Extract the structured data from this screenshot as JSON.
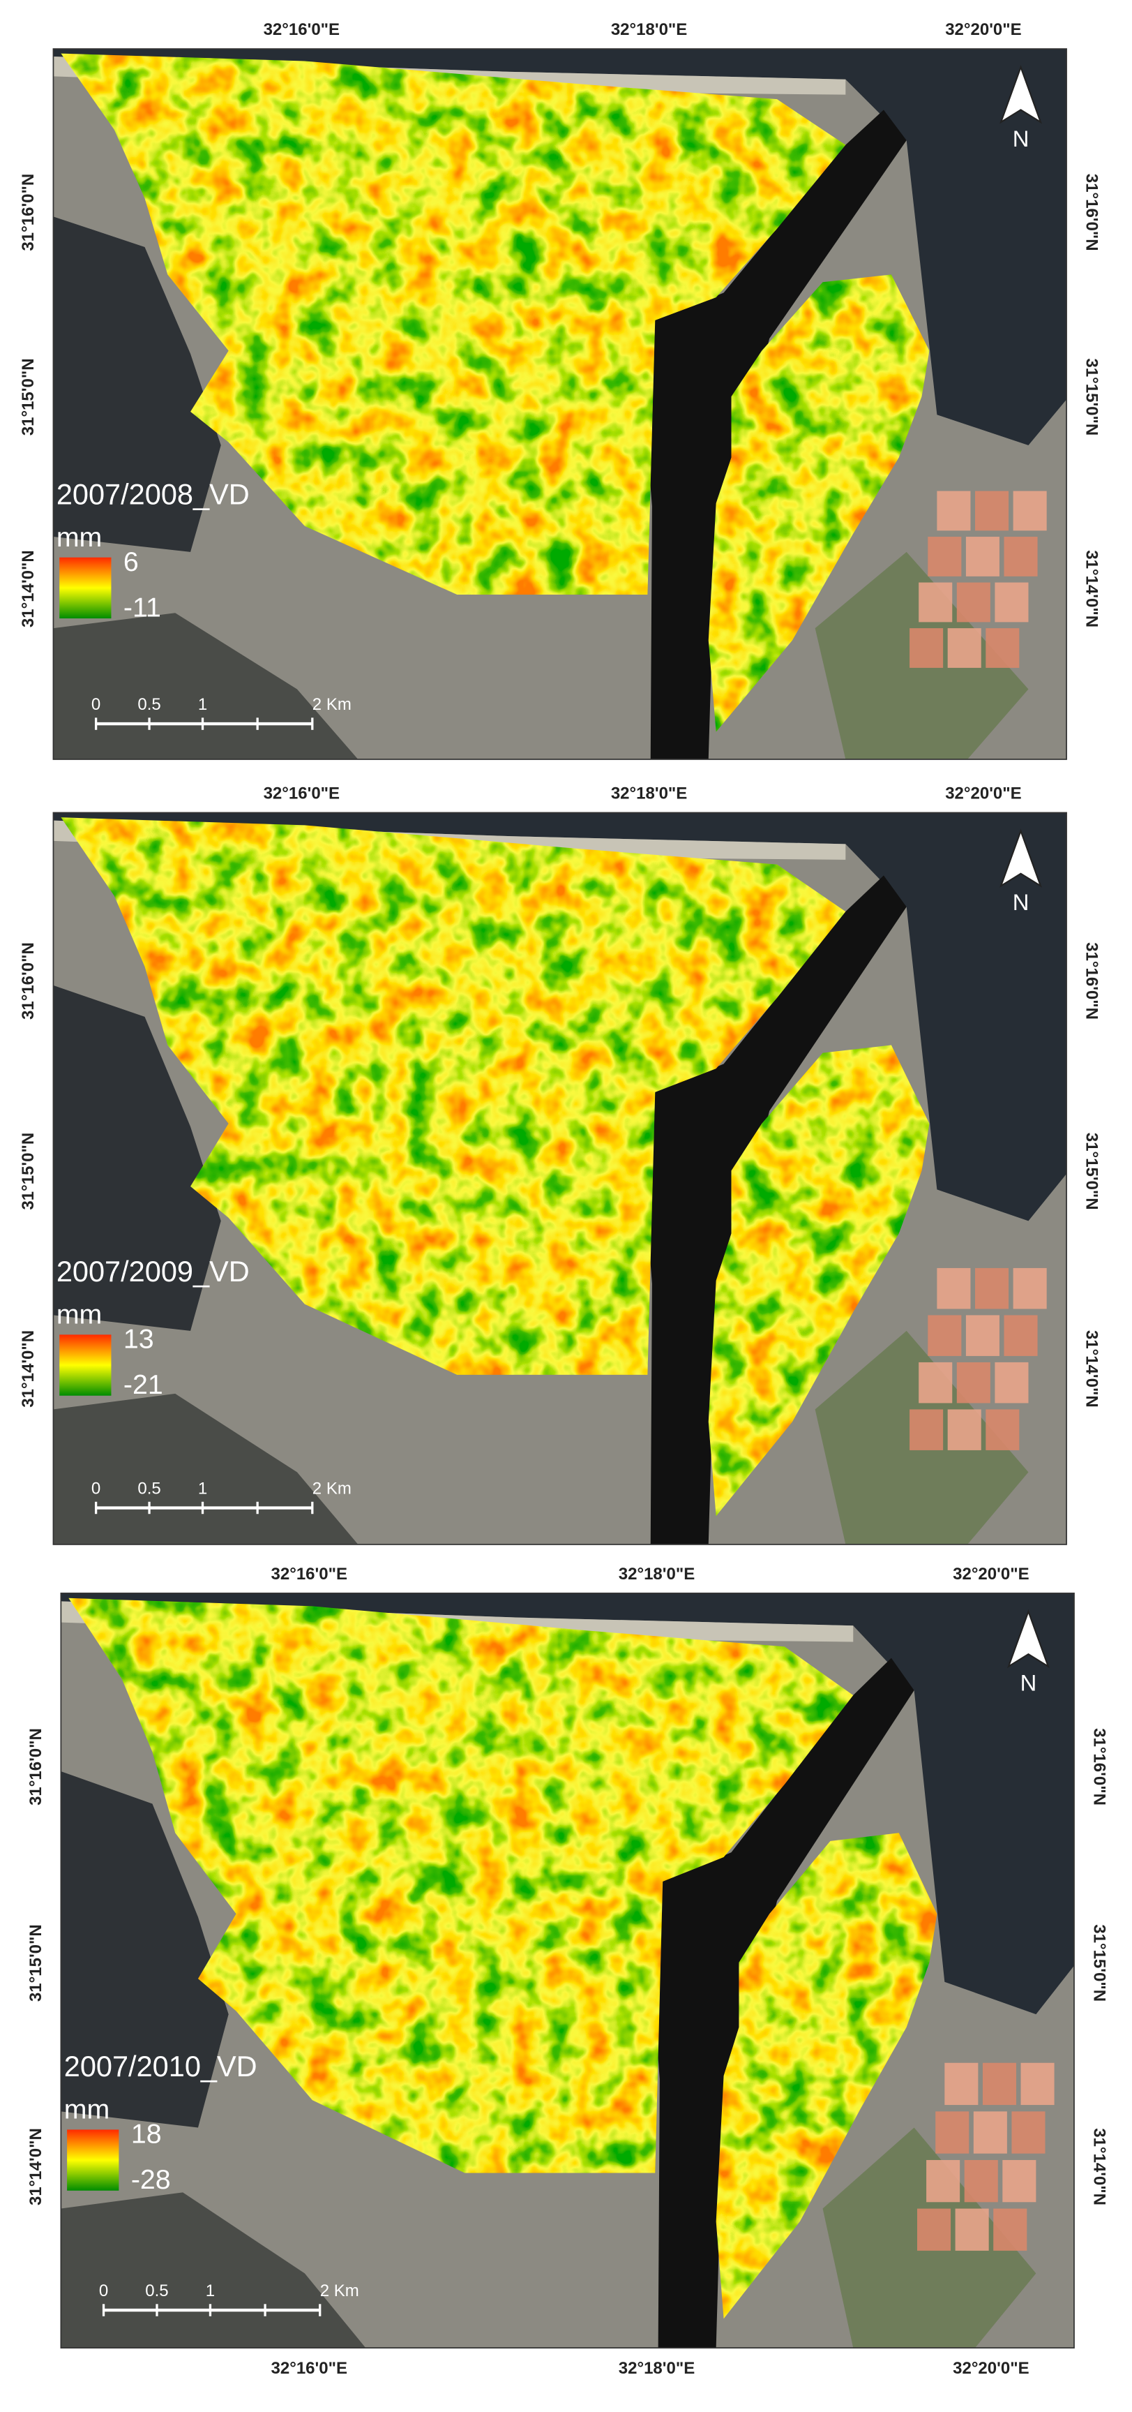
{
  "panels": [
    {
      "top_labels": [
        "32°16'0\"E",
        "32°18'0\"E",
        "32°20'0\"E"
      ],
      "left_labels": [
        "31°16'0\"N",
        "31°15'0\"N",
        "31°14'0\"N"
      ],
      "right_labels": [
        "31°16'0\"N",
        "31°15'0\"N",
        "31°14'0\"N"
      ],
      "title": "2007/2008_VD",
      "unit": "mm",
      "legend_max": "6",
      "legend_min": "-11",
      "scale_labels": [
        "0",
        "0.5",
        "1",
        "2 Km"
      ],
      "north": "N"
    },
    {
      "top_labels": [
        "32°16'0\"E",
        "32°18'0\"E",
        "32°20'0\"E"
      ],
      "left_labels": [
        "31°16'0\"N",
        "31°15'0\"N",
        "31°14'0\"N"
      ],
      "right_labels": [
        "31°16'0\"N",
        "31°15'0\"N",
        "31°14'0\"N"
      ],
      "title": "2007/2009_VD",
      "unit": "mm",
      "legend_max": "13",
      "legend_min": "-21",
      "scale_labels": [
        "0",
        "0.5",
        "1",
        "2 Km"
      ],
      "north": "N"
    },
    {
      "top_labels": [
        "32°16'0\"E",
        "32°18'0\"E",
        "32°20'0\"E"
      ],
      "left_labels": [
        "31°16'0\"N",
        "31°15'0\"N",
        "31°14'0\"N"
      ],
      "right_labels": [
        "31°16'0\"N",
        "31°15'0\"N",
        "31°14'0\"N"
      ],
      "bottom_labels": [
        "32°16'0\"E",
        "32°18'0\"E",
        "32°20'0\"E"
      ],
      "title": "2007/2010_VD",
      "unit": "mm",
      "legend_max": "18",
      "legend_min": "-28",
      "scale_labels": [
        "0",
        "0.5",
        "1",
        "2 Km"
      ],
      "north": "N"
    }
  ]
}
